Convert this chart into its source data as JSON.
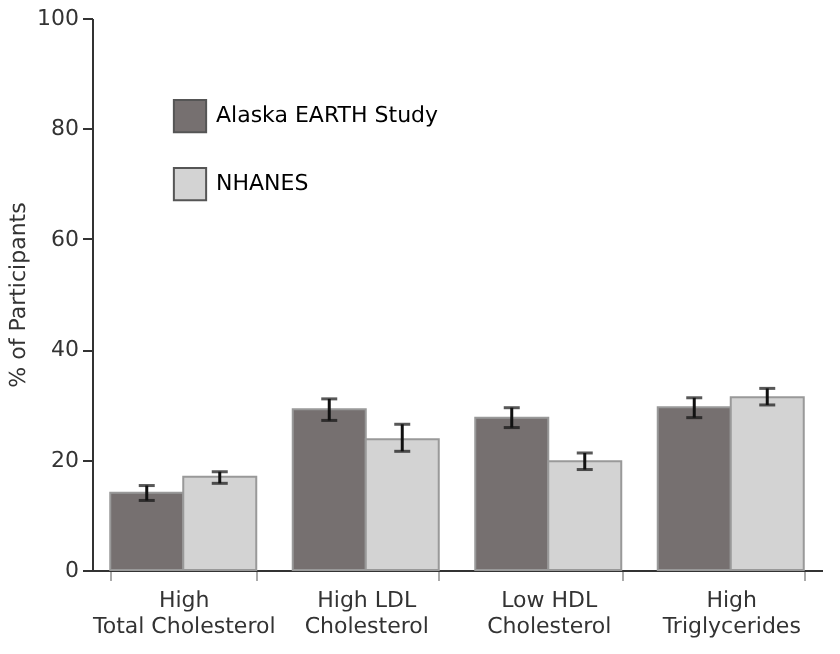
{
  "chart_data": {
    "type": "bar",
    "categories": [
      "High\nTotal Cholesterol",
      "High LDL\nCholesterol",
      "Low HDL\nCholesterol",
      "High\nTriglycerides"
    ],
    "series": [
      {
        "name": "Alaska EARTH Study",
        "color": "#767070",
        "values": [
          14.0,
          29.1,
          27.6,
          29.5
        ],
        "errors": [
          [
            12.6,
            15.3
          ],
          [
            27.1,
            31.0
          ],
          [
            25.8,
            29.4
          ],
          [
            27.6,
            31.2
          ]
        ]
      },
      {
        "name": "NHANES",
        "color": "#d3d3d3",
        "values": [
          16.9,
          23.7,
          19.7,
          31.3
        ],
        "errors": [
          [
            15.7,
            17.8
          ],
          [
            21.5,
            26.4
          ],
          [
            18.2,
            21.2
          ],
          [
            29.9,
            32.9
          ]
        ]
      }
    ],
    "ylabel": "% of Participants",
    "ylim": [
      0,
      100
    ],
    "yticks": [
      0,
      20,
      40,
      60,
      80,
      100
    ],
    "grid": false,
    "legend": "top left"
  }
}
